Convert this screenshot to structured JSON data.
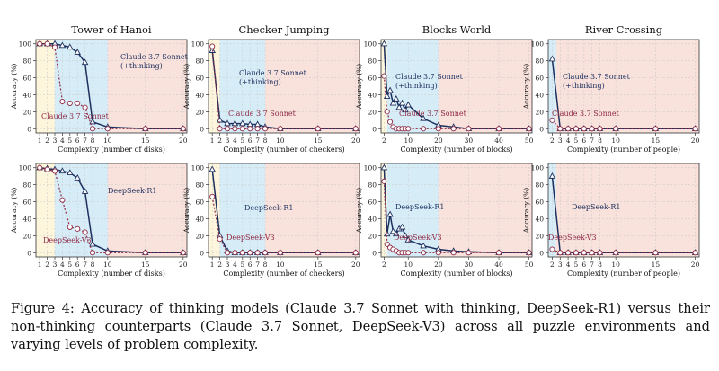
{
  "caption": "Figure 4: Accuracy of thinking models (Claude 3.7 Sonnet with thinking, DeepSeek-R1) versus their non-thinking counterparts (Claude 3.7 Sonnet, DeepSeek-V3) across all puzzle environments and varying levels of problem complexity.",
  "colors": {
    "thinking": "#1c2f5e",
    "nonthinking": "#8e2a45",
    "yellow_zone": "#fdf6dc",
    "blue_zone": "#d6edf8",
    "red_zone": "#f9e1dc"
  },
  "chart_data": [
    {
      "type": "line",
      "title": "Tower of Hanoi",
      "xlabel": "Complexity (number of disks)",
      "ylabel": "Accuracy (%)",
      "ylim": [
        0,
        100
      ],
      "xticks": [
        1,
        2,
        3,
        4,
        5,
        6,
        7,
        8,
        10,
        15,
        20
      ],
      "yticks": [
        0,
        20,
        40,
        60,
        80,
        100
      ],
      "grid": true,
      "zones": [
        [
          0.5,
          3,
          "yellow"
        ],
        [
          3,
          10,
          "blue"
        ],
        [
          10,
          20.5,
          "red"
        ]
      ],
      "series": [
        {
          "name": "Claude 3.7 Sonnet (+thinking)",
          "style": "thinking",
          "x": [
            1,
            2,
            3,
            4,
            5,
            6,
            7,
            8,
            10,
            15,
            20
          ],
          "y": [
            100,
            100,
            100,
            98,
            96,
            90,
            78,
            8,
            2,
            0,
            0
          ]
        },
        {
          "name": "Claude 3.7 Sonnet",
          "style": "nonthinking",
          "x": [
            1,
            2,
            3,
            4,
            5,
            6,
            7,
            8,
            10,
            15,
            20
          ],
          "y": [
            100,
            100,
            96,
            32,
            30,
            30,
            25,
            0,
            0,
            0,
            0
          ]
        }
      ]
    },
    {
      "type": "line",
      "title": "Checker Jumping",
      "xlabel": "Complexity (number of checkers)",
      "ylabel": "Accuracy (%)",
      "ylim": [
        0,
        100
      ],
      "xticks": [
        1,
        2,
        3,
        4,
        5,
        6,
        7,
        8,
        10,
        15,
        20
      ],
      "yticks": [
        0,
        20,
        40,
        60,
        80,
        100
      ],
      "grid": true,
      "zones": [
        [
          0.5,
          2,
          "yellow"
        ],
        [
          2,
          8,
          "blue"
        ],
        [
          8,
          20.5,
          "red"
        ]
      ],
      "series": [
        {
          "name": "Claude 3.7 Sonnet (+thinking)",
          "style": "thinking",
          "x": [
            1,
            2,
            3,
            4,
            5,
            6,
            7,
            8,
            10,
            15,
            20
          ],
          "y": [
            92,
            10,
            6,
            6,
            6,
            5,
            5,
            2,
            0,
            0,
            0
          ]
        },
        {
          "name": "Claude 3.7 Sonnet",
          "style": "nonthinking",
          "x": [
            1,
            2,
            3,
            4,
            5,
            6,
            7,
            8,
            10,
            15,
            20
          ],
          "y": [
            97,
            0,
            0,
            0,
            0,
            0,
            0,
            0,
            0,
            0,
            0
          ]
        }
      ]
    },
    {
      "type": "line",
      "title": "Blocks World",
      "xlabel": "Complexity (number of blocks)",
      "ylabel": "Accuracy (%)",
      "ylim": [
        0,
        100
      ],
      "xticks": [
        2,
        10,
        20,
        30,
        40,
        50
      ],
      "yticks": [
        0,
        20,
        40,
        60,
        80,
        100
      ],
      "grid": true,
      "zones": [
        [
          1,
          3,
          "yellow"
        ],
        [
          3,
          20,
          "blue"
        ],
        [
          20,
          51,
          "red"
        ]
      ],
      "series": [
        {
          "name": "Claude 3.7 Sonnet (+thinking)",
          "style": "thinking",
          "x": [
            2,
            3,
            4,
            5,
            6,
            7,
            8,
            9,
            10,
            15,
            20,
            25,
            30,
            40,
            50
          ],
          "y": [
            100,
            38,
            45,
            30,
            35,
            25,
            30,
            22,
            28,
            12,
            4,
            2,
            0,
            0,
            0
          ]
        },
        {
          "name": "Claude 3.7 Sonnet",
          "style": "nonthinking",
          "x": [
            2,
            3,
            4,
            5,
            6,
            7,
            8,
            9,
            10,
            15,
            20,
            25,
            30,
            40,
            50
          ],
          "y": [
            62,
            20,
            8,
            2,
            0,
            0,
            0,
            0,
            0,
            0,
            0,
            0,
            0,
            0,
            0
          ]
        }
      ]
    },
    {
      "type": "line",
      "title": "River Crossing",
      "xlabel": "Complexity (number of people)",
      "ylabel": "Accuracy (%)",
      "ylim": [
        0,
        100
      ],
      "xticks": [
        2,
        3,
        4,
        5,
        6,
        7,
        8,
        10,
        15,
        20
      ],
      "yticks": [
        0,
        20,
        40,
        60,
        80,
        100
      ],
      "grid": true,
      "zones": [
        [
          1.5,
          2.5,
          "blue"
        ],
        [
          2.5,
          20.5,
          "red"
        ]
      ],
      "series": [
        {
          "name": "Claude 3.7 Sonnet (+thinking)",
          "style": "thinking",
          "x": [
            2,
            3,
            4,
            5,
            6,
            7,
            8,
            10,
            15,
            20
          ],
          "y": [
            82,
            0,
            0,
            0,
            0,
            0,
            0,
            0,
            0,
            0
          ]
        },
        {
          "name": "Claude 3.7 Sonnet",
          "style": "nonthinking",
          "x": [
            2,
            3,
            4,
            5,
            6,
            7,
            8,
            10,
            15,
            20
          ],
          "y": [
            10,
            0,
            0,
            0,
            0,
            0,
            0,
            0,
            0,
            0
          ]
        }
      ]
    },
    {
      "type": "line",
      "title": "",
      "xlabel": "Complexity (number of disks)",
      "ylabel": "Accuracy (%)",
      "ylim": [
        0,
        100
      ],
      "xticks": [
        1,
        2,
        3,
        4,
        5,
        6,
        7,
        8,
        10,
        15,
        20
      ],
      "yticks": [
        0,
        20,
        40,
        60,
        80,
        100
      ],
      "grid": true,
      "zones": [
        [
          0.5,
          3,
          "yellow"
        ],
        [
          3,
          10,
          "blue"
        ],
        [
          10,
          20.5,
          "red"
        ]
      ],
      "series": [
        {
          "name": "DeepSeek-R1",
          "style": "thinking",
          "x": [
            1,
            2,
            3,
            4,
            5,
            6,
            7,
            8,
            10,
            15,
            20
          ],
          "y": [
            100,
            99,
            98,
            96,
            94,
            88,
            72,
            10,
            2,
            0,
            0
          ]
        },
        {
          "name": "DeepSeek-V3",
          "style": "nonthinking",
          "x": [
            1,
            2,
            3,
            4,
            5,
            6,
            7,
            8,
            10,
            15,
            20
          ],
          "y": [
            100,
            98,
            96,
            62,
            30,
            28,
            24,
            0,
            0,
            0,
            0
          ]
        }
      ]
    },
    {
      "type": "line",
      "title": "",
      "xlabel": "Complexity (number of checkers)",
      "ylabel": "Accuracy (%)",
      "ylim": [
        0,
        100
      ],
      "xticks": [
        1,
        2,
        3,
        4,
        5,
        6,
        7,
        8,
        10,
        15,
        20
      ],
      "yticks": [
        0,
        20,
        40,
        60,
        80,
        100
      ],
      "grid": true,
      "zones": [
        [
          0.5,
          2,
          "yellow"
        ],
        [
          2,
          8,
          "blue"
        ],
        [
          8,
          20.5,
          "red"
        ]
      ],
      "series": [
        {
          "name": "DeepSeek-R1",
          "style": "thinking",
          "x": [
            1,
            2,
            3,
            4,
            5,
            6,
            7,
            8,
            10,
            15,
            20
          ],
          "y": [
            98,
            20,
            2,
            0,
            0,
            0,
            0,
            0,
            0,
            0,
            0
          ]
        },
        {
          "name": "DeepSeek-V3",
          "style": "nonthinking",
          "x": [
            1,
            2,
            3,
            4,
            5,
            6,
            7,
            8,
            10,
            15,
            20
          ],
          "y": [
            66,
            16,
            0,
            0,
            0,
            0,
            0,
            0,
            0,
            0,
            0
          ]
        }
      ]
    },
    {
      "type": "line",
      "title": "",
      "xlabel": "Complexity (number of blocks)",
      "ylabel": "Accuracy (%)",
      "ylim": [
        0,
        100
      ],
      "xticks": [
        2,
        10,
        20,
        30,
        40,
        50
      ],
      "yticks": [
        0,
        20,
        40,
        60,
        80,
        100
      ],
      "grid": true,
      "zones": [
        [
          1,
          3,
          "yellow"
        ],
        [
          3,
          20,
          "blue"
        ],
        [
          20,
          51,
          "red"
        ]
      ],
      "series": [
        {
          "name": "DeepSeek-R1",
          "style": "thinking",
          "x": [
            2,
            3,
            4,
            5,
            6,
            7,
            8,
            9,
            10,
            15,
            20,
            25,
            30,
            40,
            50
          ],
          "y": [
            100,
            22,
            45,
            25,
            22,
            28,
            30,
            20,
            15,
            8,
            4,
            2,
            1,
            0,
            0
          ]
        },
        {
          "name": "DeepSeek-V3",
          "style": "nonthinking",
          "x": [
            2,
            3,
            4,
            5,
            6,
            7,
            8,
            9,
            10,
            15,
            20,
            25,
            30,
            40,
            50
          ],
          "y": [
            84,
            10,
            6,
            4,
            2,
            0,
            0,
            0,
            0,
            0,
            0,
            0,
            0,
            0,
            0
          ]
        }
      ]
    },
    {
      "type": "line",
      "title": "",
      "xlabel": "Complexity (number of people)",
      "ylabel": "Accuracy (%)",
      "ylim": [
        0,
        100
      ],
      "xticks": [
        2,
        3,
        4,
        5,
        6,
        7,
        8,
        10,
        15,
        20
      ],
      "yticks": [
        0,
        20,
        40,
        60,
        80,
        100
      ],
      "grid": true,
      "zones": [
        [
          1.5,
          2.5,
          "blue"
        ],
        [
          2.5,
          20.5,
          "red"
        ]
      ],
      "series": [
        {
          "name": "DeepSeek-R1",
          "style": "thinking",
          "x": [
            2,
            3,
            4,
            5,
            6,
            7,
            8,
            10,
            15,
            20
          ],
          "y": [
            90,
            0,
            0,
            0,
            0,
            0,
            0,
            0,
            0,
            0
          ]
        },
        {
          "name": "DeepSeek-V3",
          "style": "nonthinking",
          "x": [
            2,
            3,
            4,
            5,
            6,
            7,
            8,
            10,
            15,
            20
          ],
          "y": [
            4,
            0,
            0,
            0,
            0,
            0,
            0,
            0,
            0,
            0
          ]
        }
      ]
    }
  ],
  "annotations": [
    {
      "panel": 0,
      "series": 0,
      "lines": [
        "Claude 3.7 Sonnet",
        "(+thinking)"
      ]
    },
    {
      "panel": 0,
      "series": 1,
      "lines": [
        "Claude 3.7 Sonnet"
      ]
    },
    {
      "panel": 1,
      "series": 0,
      "lines": [
        "Claude 3.7 Sonnet",
        "(+thinking)"
      ]
    },
    {
      "panel": 1,
      "series": 1,
      "lines": [
        "Claude 3.7 Sonnet"
      ]
    },
    {
      "panel": 2,
      "series": 0,
      "lines": [
        "Claude 3.7 Sonnet",
        "(+thinking)"
      ]
    },
    {
      "panel": 2,
      "series": 1,
      "lines": [
        "Claude 3.7 Sonnet"
      ]
    },
    {
      "panel": 3,
      "series": 0,
      "lines": [
        "Claude 3.7 Sonnet",
        "(+thinking)"
      ]
    },
    {
      "panel": 3,
      "series": 1,
      "lines": [
        "Claude 3.7 Sonnet"
      ]
    },
    {
      "panel": 4,
      "series": 0,
      "lines": [
        "DeepSeek-R1"
      ]
    },
    {
      "panel": 4,
      "series": 1,
      "lines": [
        "DeepSeek-V3"
      ]
    },
    {
      "panel": 5,
      "series": 0,
      "lines": [
        "DeepSeek-R1"
      ]
    },
    {
      "panel": 5,
      "series": 1,
      "lines": [
        "DeepSeek-V3"
      ]
    },
    {
      "panel": 6,
      "series": 0,
      "lines": [
        "DeepSeek-R1"
      ]
    },
    {
      "panel": 6,
      "series": 1,
      "lines": [
        "DeepSeek-V3"
      ]
    },
    {
      "panel": 7,
      "series": 0,
      "lines": [
        "DeepSeek-R1"
      ]
    },
    {
      "panel": 7,
      "series": 1,
      "lines": [
        "DeepSeek-V3"
      ]
    }
  ]
}
